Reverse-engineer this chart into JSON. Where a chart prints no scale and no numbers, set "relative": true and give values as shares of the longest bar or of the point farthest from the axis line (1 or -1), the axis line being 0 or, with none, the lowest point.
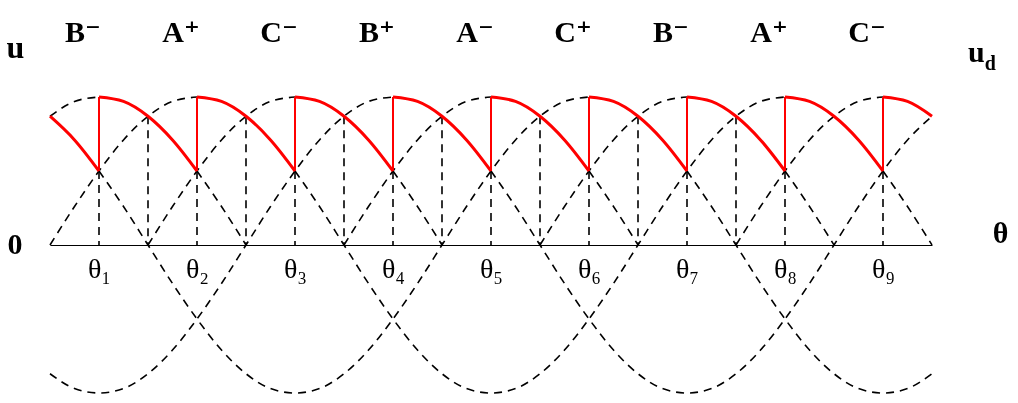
{
  "chart_data": {
    "type": "line",
    "relative": true,
    "ylabel": "u",
    "xlabel": "θ",
    "line_style": "dashed",
    "categories": [
      null,
      null,
      "θ₁",
      null,
      null,
      null,
      "θ₂",
      null,
      null,
      null,
      "θ₃",
      null,
      null,
      null,
      "θ₄",
      null,
      null,
      null,
      "θ₅",
      null,
      null,
      null,
      "θ₆",
      null,
      null,
      null,
      "θ₇",
      null,
      null,
      null,
      "θ₈",
      null,
      null,
      null,
      "θ₉",
      null,
      null
    ],
    "annotations": [
      "B⁻",
      "A⁺",
      "C⁻",
      "B⁺",
      "A⁻",
      "C⁺",
      "B⁻",
      "A⁺",
      "C⁻",
      "0"
    ],
    "series": [
      {
        "color": "#000000",
        "values": [
          null,
          null,
          0.5,
          0.26,
          0,
          -0.26,
          -0.5,
          -0.71,
          -0.87,
          -0.97,
          -1,
          -0.97,
          -0.87,
          -0.71,
          -0.5,
          -0.26,
          0,
          0.26,
          0.5,
          0.71,
          0.87,
          0.97,
          1,
          null,
          null,
          null,
          0.5,
          0.26,
          0,
          -0.26,
          -0.5,
          -0.71,
          -0.87,
          -0.97,
          -1,
          -0.97,
          -0.87
        ]
      },
      {
        "color": "#000000",
        "values": [
          0,
          0.26,
          0.5,
          0.71,
          0.87,
          0.97,
          1,
          null,
          null,
          null,
          0.5,
          0.26,
          0,
          -0.26,
          -0.5,
          -0.71,
          -0.87,
          -0.97,
          -1,
          -0.97,
          -0.87,
          -0.71,
          -0.5,
          -0.26,
          0,
          0.26,
          0.5,
          0.71,
          0.87,
          0.97,
          1,
          null,
          null,
          null,
          0.5,
          0.26,
          0
        ]
      },
      {
        "color": "#000000",
        "values": [
          -0.87,
          -0.97,
          -1,
          -0.97,
          -0.87,
          -0.71,
          -0.5,
          -0.26,
          0,
          0.26,
          0.5,
          0.71,
          0.87,
          0.97,
          1,
          null,
          null,
          null,
          0.5,
          0.26,
          0,
          -0.26,
          -0.5,
          -0.71,
          -0.87,
          -0.97,
          -1,
          -0.97,
          -0.87,
          -0.71,
          -0.5,
          -0.26,
          0,
          0.26,
          0.5,
          0.71,
          0.87
        ]
      },
      {
        "color": "#000000",
        "values": [
          0.87,
          0.97,
          1,
          null,
          null,
          null,
          0.5,
          0.26,
          0,
          null,
          null,
          null,
          null,
          null,
          null,
          null,
          null,
          null,
          null,
          null,
          0,
          0.26,
          0.5,
          0.71,
          0.87,
          0.97,
          1,
          null,
          null,
          null,
          0.5,
          0.26,
          0,
          null,
          null,
          null,
          null
        ]
      },
      {
        "color": "#000000",
        "values": [
          null,
          null,
          null,
          null,
          0,
          0.26,
          0.5,
          0.71,
          0.87,
          0.97,
          1,
          null,
          null,
          null,
          0.5,
          0.26,
          0,
          null,
          null,
          null,
          null,
          null,
          null,
          null,
          null,
          null,
          null,
          null,
          0,
          0.26,
          0.5,
          0.71,
          0.87,
          0.97,
          1,
          null,
          null
        ]
      },
      {
        "color": "#000000",
        "values": [
          null,
          null,
          null,
          null,
          null,
          null,
          null,
          null,
          null,
          null,
          null,
          null,
          0,
          0.26,
          0.5,
          0.71,
          0.87,
          0.97,
          1,
          null,
          null,
          null,
          0.5,
          0.26,
          0,
          null,
          null,
          null,
          null,
          null,
          null,
          null,
          null,
          null,
          null,
          null,
          null
        ]
      },
      {
        "type": "bar",
        "color": "#000000",
        "values": [
          null,
          null,
          0.5,
          null,
          0.87,
          null,
          0.5,
          null,
          0.87,
          null,
          0.5,
          null,
          0.87,
          null,
          0.5,
          null,
          0.87,
          null,
          0.5,
          null,
          0.87,
          null,
          0.5,
          null,
          0.87,
          null,
          0.5,
          null,
          0.87,
          null,
          0.5,
          null,
          null,
          null,
          0.5,
          null,
          null
        ]
      },
      {
        "color": "#ff0000",
        "line_style": "solid",
        "x": [
          "θ₁",
          "θ₁",
          "θ₁",
          "θ₂",
          "θ₂",
          "θ₂",
          "θ₃",
          "θ₃",
          "θ₃",
          "θ₄",
          "θ₄",
          "θ₄",
          "θ₅",
          "θ₅",
          "θ₅",
          "θ₆",
          "θ₆",
          "θ₆",
          "θ₇",
          "θ₇",
          "θ₇",
          "θ₈",
          "θ₈",
          "θ₈",
          "θ₉",
          "θ₉"
        ],
        "values": [
          0.5,
          1,
          null,
          0.5,
          1,
          null,
          0.5,
          1,
          null,
          0.5,
          1,
          null,
          0.5,
          1,
          null,
          0.5,
          1,
          null,
          0.5,
          1,
          null,
          0.5,
          1,
          null,
          0.5,
          1
        ]
      },
      {
        "color": "#ff0000",
        "line_style": "solid",
        "values": [
          0.87,
          0.71,
          0.5,
          null,
          null,
          null,
          1,
          0.97,
          0.87,
          0.71,
          0.5,
          null,
          null,
          null,
          1,
          0.97,
          0.87,
          0.71,
          0.5,
          null,
          null,
          null,
          1,
          0.97,
          0.87,
          0.71,
          0.5,
          null,
          null,
          null,
          1,
          0.97,
          0.87,
          0.71,
          0.5,
          null,
          null
        ]
      },
      {
        "name": "u$_{d}$",
        "color": "#ff0000",
        "line_style": "solid",
        "values": [
          null,
          null,
          1,
          0.97,
          0.87,
          0.71,
          0.5,
          null,
          null,
          null,
          1,
          0.97,
          0.87,
          0.71,
          0.5,
          null,
          null,
          null,
          1,
          0.97,
          0.87,
          0.71,
          0.5,
          null,
          null,
          null,
          1,
          0.97,
          0.87,
          0.71,
          0.5,
          null,
          null,
          null,
          1,
          0.97,
          0.87
        ]
      }
    ]
  }
}
